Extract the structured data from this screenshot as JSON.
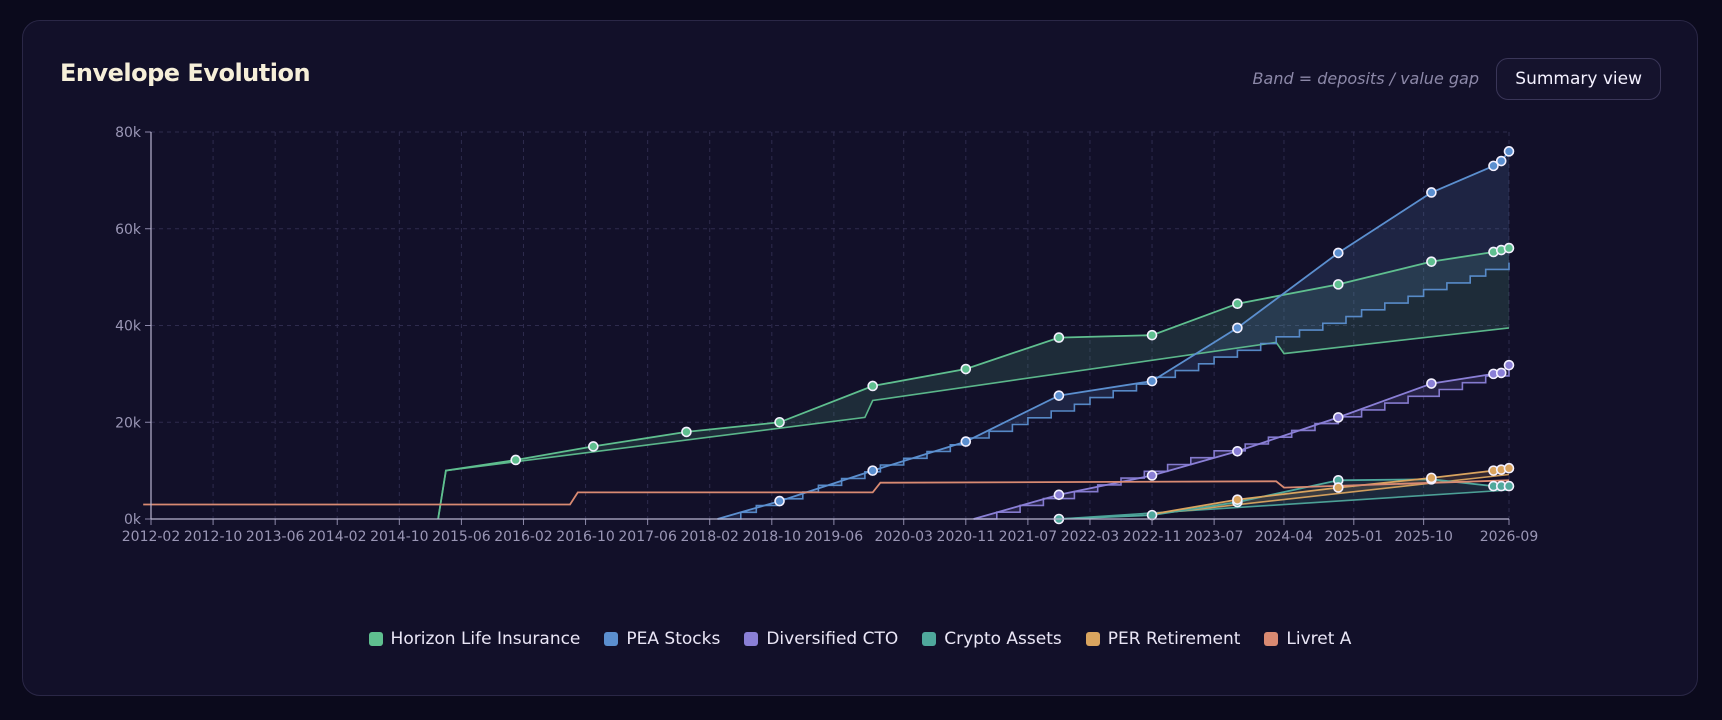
{
  "header": {
    "title": "Envelope Evolution",
    "hint": "Band = deposits / value gap",
    "summary_button": "Summary view"
  },
  "chart_data": {
    "type": "line",
    "title": "Envelope Evolution",
    "xlabel": "",
    "ylabel": "",
    "xlim": [
      "2012-02",
      "2026-09"
    ],
    "ylim": [
      0,
      80000
    ],
    "x_ticks": [
      "2012-02",
      "2012-10",
      "2013-06",
      "2014-02",
      "2014-10",
      "2015-06",
      "2016-02",
      "2016-10",
      "2017-06",
      "2018-02",
      "2018-10",
      "2019-06",
      "2020-03",
      "2020-11",
      "2021-07",
      "2022-03",
      "2022-11",
      "2023-07",
      "2024-04",
      "2025-01",
      "2025-10",
      "2026-09"
    ],
    "y_ticks": [
      0,
      20000,
      40000,
      60000,
      80000
    ],
    "y_tick_labels": [
      "0k",
      "20k",
      "40k",
      "60k",
      "80k"
    ],
    "grid": true,
    "legend_position": "bottom",
    "series": [
      {
        "name": "Horizon Life Insurance",
        "color": "#5fbf8f",
        "value": [
          [
            "2015-03",
            0
          ],
          [
            "2015-04",
            10000
          ],
          [
            "2016-01",
            12200
          ],
          [
            "2016-11",
            15000
          ],
          [
            "2017-11",
            18000
          ],
          [
            "2018-11",
            20000
          ],
          [
            "2019-11",
            27500
          ],
          [
            "2020-11",
            31000
          ],
          [
            "2021-11",
            37500
          ],
          [
            "2022-11",
            38000
          ],
          [
            "2023-10",
            44500
          ],
          [
            "2024-11",
            48500
          ],
          [
            "2025-11",
            53200
          ],
          [
            "2026-07",
            55200
          ],
          [
            "2026-08",
            55600
          ],
          [
            "2026-09",
            56000
          ]
        ],
        "markers": [
          [
            "2016-01",
            12200
          ],
          [
            "2016-11",
            15000
          ],
          [
            "2017-11",
            18000
          ],
          [
            "2018-11",
            20000
          ],
          [
            "2019-11",
            27500
          ],
          [
            "2020-11",
            31000
          ],
          [
            "2021-11",
            37500
          ],
          [
            "2022-11",
            38000
          ],
          [
            "2023-10",
            44500
          ],
          [
            "2024-11",
            48500
          ],
          [
            "2025-11",
            53200
          ],
          [
            "2026-07",
            55200
          ],
          [
            "2026-08",
            55600
          ],
          [
            "2026-09",
            56000
          ]
        ],
        "deposits": [
          [
            "2015-03",
            0
          ],
          [
            "2015-04",
            10000
          ],
          [
            "2019-10",
            21000
          ],
          [
            "2019-11",
            24500
          ],
          [
            "2024-03",
            36500
          ],
          [
            "2024-04",
            34200
          ],
          [
            "2026-09",
            39500
          ]
        ]
      },
      {
        "name": "PEA Stocks",
        "color": "#5b8fcf",
        "value": [
          [
            "2018-03",
            0
          ],
          [
            "2018-11",
            3700
          ],
          [
            "2019-11",
            10000
          ],
          [
            "2020-11",
            16000
          ],
          [
            "2021-11",
            25500
          ],
          [
            "2022-11",
            28500
          ],
          [
            "2023-10",
            39500
          ],
          [
            "2024-11",
            55000
          ],
          [
            "2025-11",
            67500
          ],
          [
            "2026-07",
            73000
          ],
          [
            "2026-08",
            74000
          ],
          [
            "2026-09",
            76000
          ]
        ],
        "markers": [
          [
            "2018-11",
            3700
          ],
          [
            "2019-11",
            10000
          ],
          [
            "2020-11",
            16000
          ],
          [
            "2021-11",
            25500
          ],
          [
            "2022-11",
            28500
          ],
          [
            "2023-10",
            39500
          ],
          [
            "2024-11",
            55000
          ],
          [
            "2025-11",
            67500
          ],
          [
            "2026-07",
            73000
          ],
          [
            "2026-08",
            74000
          ],
          [
            "2026-09",
            76000
          ]
        ],
        "deposits_step": {
          "start": "2018-03",
          "end": "2026-09",
          "from": 0,
          "to": 53000,
          "steps": 38
        }
      },
      {
        "name": "Diversified CTO",
        "color": "#8a7fd6",
        "value": [
          [
            "2020-12",
            0
          ],
          [
            "2021-11",
            5000
          ],
          [
            "2022-11",
            9000
          ],
          [
            "2023-10",
            14000
          ],
          [
            "2024-11",
            21000
          ],
          [
            "2025-11",
            28000
          ],
          [
            "2026-07",
            30000
          ],
          [
            "2026-08",
            30200
          ],
          [
            "2026-09",
            31800
          ]
        ],
        "markers": [
          [
            "2021-11",
            5000
          ],
          [
            "2022-11",
            9000
          ],
          [
            "2023-10",
            14000
          ],
          [
            "2024-11",
            21000
          ],
          [
            "2025-11",
            28000
          ],
          [
            "2026-07",
            30000
          ],
          [
            "2026-08",
            30200
          ],
          [
            "2026-09",
            31800
          ]
        ],
        "deposits_step": {
          "start": "2020-12",
          "end": "2026-09",
          "from": 0,
          "to": 31000,
          "steps": 22
        }
      },
      {
        "name": "Crypto Assets",
        "color": "#4fa89c",
        "value": [
          [
            "2021-11",
            0
          ],
          [
            "2022-11",
            800
          ],
          [
            "2023-10",
            3500
          ],
          [
            "2024-11",
            8000
          ],
          [
            "2025-11",
            8200
          ],
          [
            "2026-07",
            6800
          ],
          [
            "2026-08",
            6800
          ],
          [
            "2026-09",
            6800
          ]
        ],
        "markers": [
          [
            "2021-11",
            0
          ],
          [
            "2022-11",
            800
          ],
          [
            "2023-10",
            3500
          ],
          [
            "2024-11",
            8000
          ],
          [
            "2025-11",
            8200
          ],
          [
            "2026-07",
            6800
          ],
          [
            "2026-08",
            6800
          ],
          [
            "2026-09",
            6800
          ]
        ],
        "deposits": [
          [
            "2021-11",
            0
          ],
          [
            "2026-09",
            6000
          ]
        ]
      },
      {
        "name": "PER Retirement",
        "color": "#d9a45f",
        "value": [
          [
            "2022-11",
            1000
          ],
          [
            "2023-10",
            4000
          ],
          [
            "2024-11",
            6500
          ],
          [
            "2025-11",
            8500
          ],
          [
            "2026-07",
            10000
          ],
          [
            "2026-08",
            10200
          ],
          [
            "2026-09",
            10500
          ]
        ],
        "markers": [
          [
            "2023-10",
            4000
          ],
          [
            "2024-11",
            6500
          ],
          [
            "2025-11",
            8500
          ],
          [
            "2026-07",
            10000
          ],
          [
            "2026-08",
            10200
          ],
          [
            "2026-09",
            10500
          ]
        ],
        "deposits": [
          [
            "2022-11",
            1000
          ],
          [
            "2026-09",
            9200
          ]
        ]
      },
      {
        "name": "Livret A",
        "color": "#d98a72",
        "value": [
          [
            "2012-01",
            3000
          ],
          [
            "2016-08",
            3000
          ],
          [
            "2016-09",
            5500
          ],
          [
            "2019-11",
            5500
          ],
          [
            "2019-12",
            7500
          ],
          [
            "2024-03",
            7800
          ],
          [
            "2024-04",
            6500
          ],
          [
            "2026-09",
            8000
          ]
        ],
        "markers": []
      }
    ]
  }
}
